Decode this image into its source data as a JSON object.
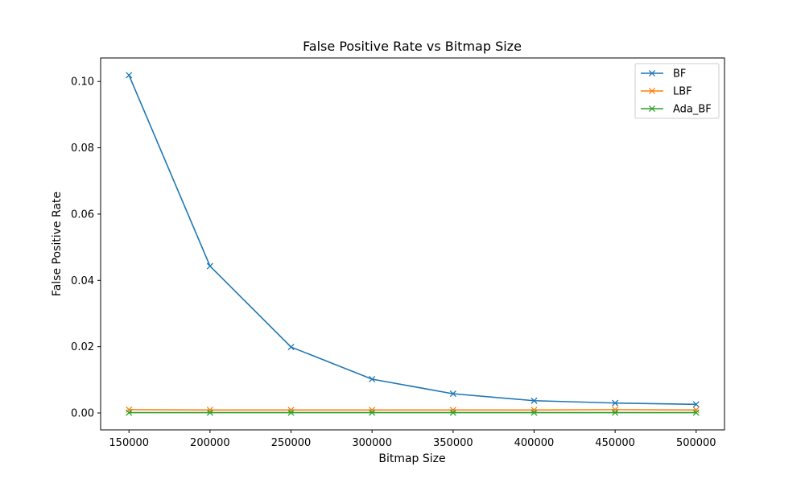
{
  "chart_data": {
    "type": "line",
    "title": "False Positive Rate vs Bitmap Size",
    "xlabel": "Bitmap Size",
    "ylabel": "False Positive Rate",
    "x": [
      150000,
      200000,
      250000,
      300000,
      350000,
      400000,
      450000,
      500000
    ],
    "xticks": [
      "150000",
      "200000",
      "250000",
      "300000",
      "350000",
      "400000",
      "450000",
      "500000"
    ],
    "yticks": [
      "0.00",
      "0.02",
      "0.04",
      "0.06",
      "0.08",
      "0.10"
    ],
    "xlim": [
      132500,
      517500
    ],
    "ylim": [
      -0.0051,
      0.1071
    ],
    "grid": false,
    "legend_position": "upper right",
    "marker": "x",
    "series": [
      {
        "name": "BF",
        "color": "#1f77b4",
        "values": [
          0.1019,
          0.0443,
          0.0199,
          0.0102,
          0.0058,
          0.0037,
          0.003,
          0.0026
        ]
      },
      {
        "name": "LBF",
        "color": "#ff7f0e",
        "values": [
          0.001,
          0.0009,
          0.0009,
          0.0009,
          0.0009,
          0.0009,
          0.001,
          0.0009
        ]
      },
      {
        "name": "Ada_BF",
        "color": "#2ca02c",
        "values": [
          0.0001,
          0.0001,
          0.0001,
          0.0001,
          0.0001,
          0.0001,
          0.0001,
          0.0001
        ]
      }
    ]
  }
}
